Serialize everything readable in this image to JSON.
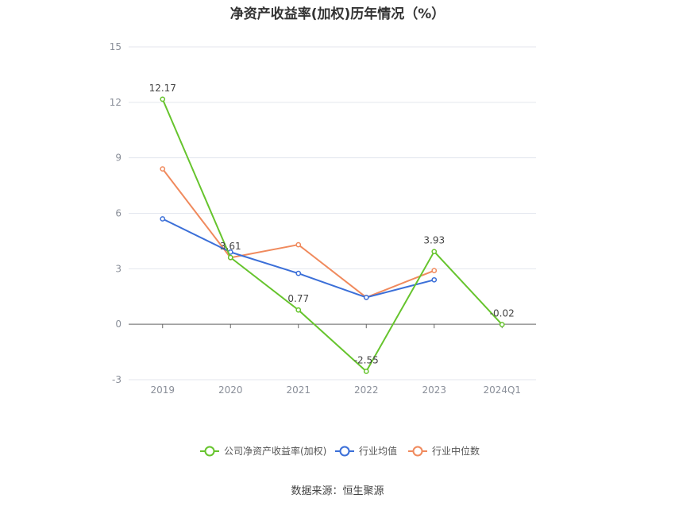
{
  "chart_data": {
    "type": "line",
    "title": "净资产收益率(加权)历年情况（%）",
    "categories": [
      "2019",
      "2020",
      "2021",
      "2022",
      "2023",
      "2024Q1"
    ],
    "ylim": [
      -3,
      15
    ],
    "yticks": [
      -3,
      0,
      3,
      6,
      9,
      12,
      15
    ],
    "grid": true,
    "legend_position": "bottom-center",
    "series": [
      {
        "name": "公司净资产收益率(加权)",
        "color": "#66c42d",
        "values": [
          12.17,
          3.61,
          0.77,
          -2.55,
          3.93,
          -0.02
        ],
        "labels": [
          "12.17",
          "3.61",
          "0.77",
          "-2.55",
          "3.93",
          "-0.02"
        ]
      },
      {
        "name": "行业均值",
        "color": "#3b6fd8",
        "values": [
          5.7,
          3.9,
          2.75,
          1.45,
          2.4,
          null
        ]
      },
      {
        "name": "行业中位数",
        "color": "#f08a5d",
        "values": [
          8.4,
          3.6,
          4.3,
          1.45,
          2.9,
          null
        ]
      }
    ]
  },
  "source": "数据来源：恒生聚源"
}
